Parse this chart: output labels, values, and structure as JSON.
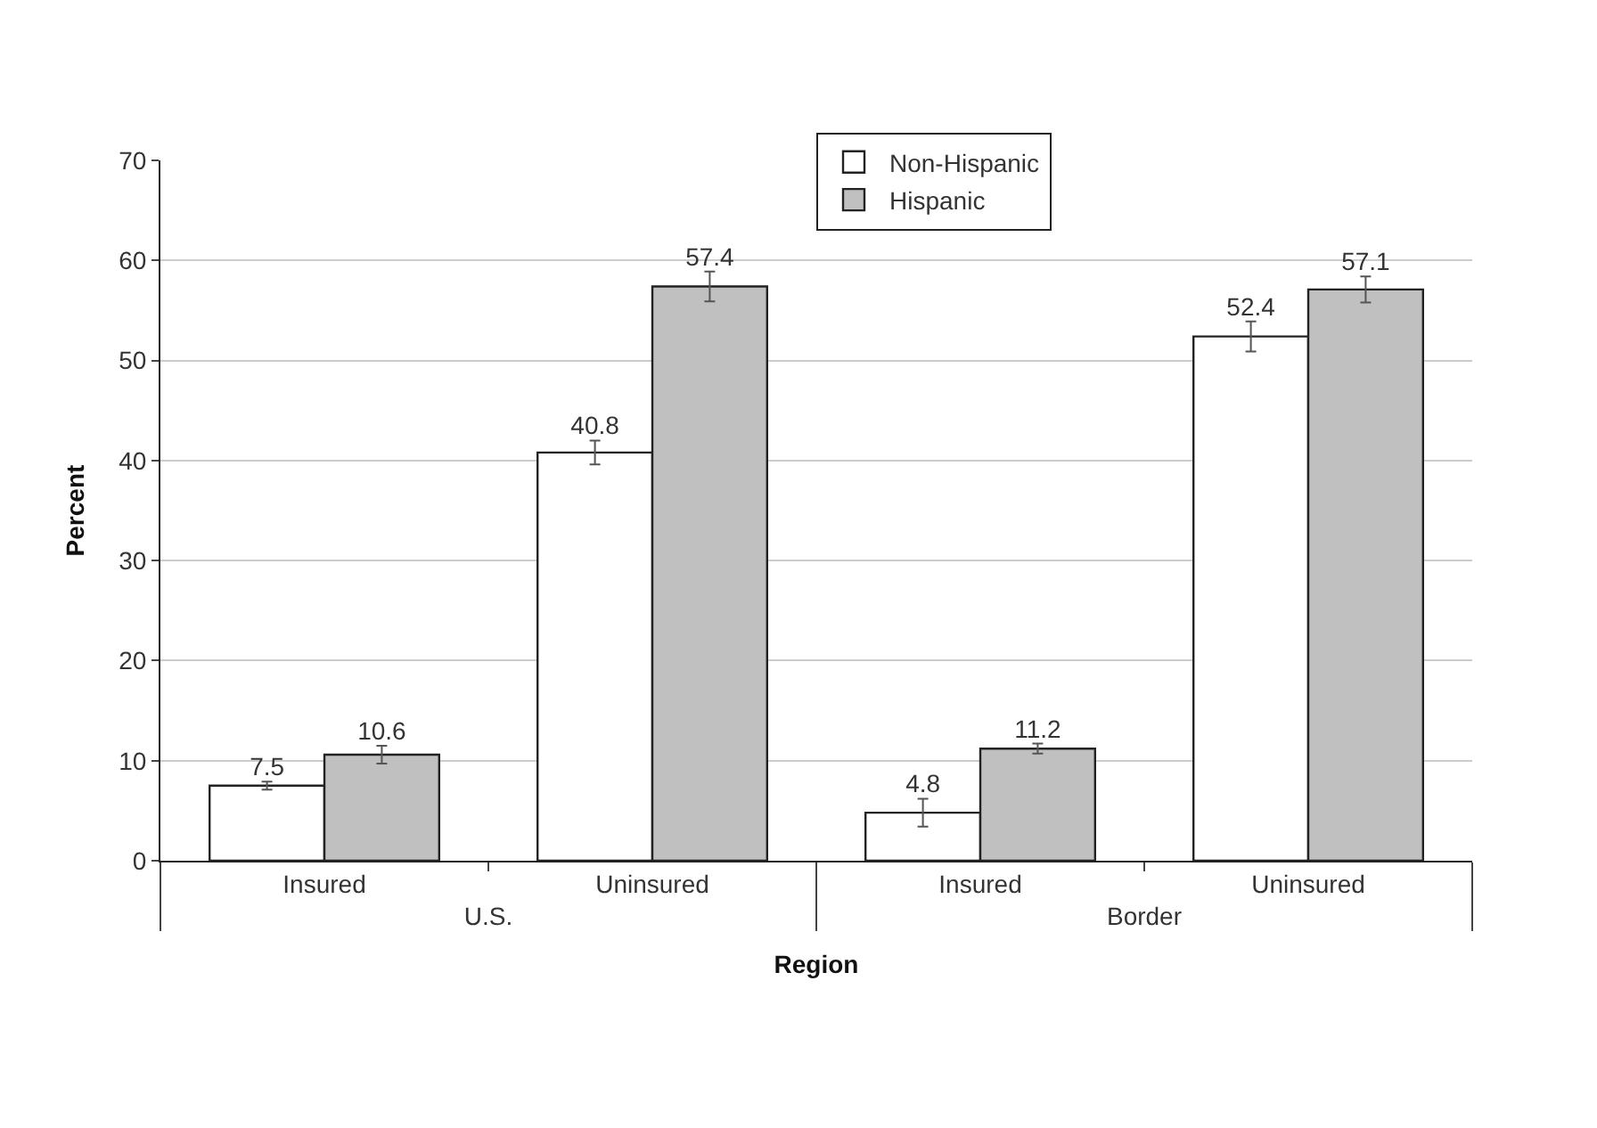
{
  "chart_data": {
    "type": "bar",
    "xlabel": "Region",
    "ylabel": "Percent",
    "categories": [
      "Insured",
      "Uninsured",
      "Insured",
      "Uninsured"
    ],
    "annotations": [
      "U.S.",
      "Border"
    ],
    "series": [
      {
        "name": "Non-Hispanic",
        "color": "#ffffff",
        "values": [
          7.5,
          40.8,
          4.8,
          52.4
        ],
        "errors": [
          0.4,
          1.2,
          1.4,
          1.5
        ]
      },
      {
        "name": "Hispanic",
        "color": "#c0c0c0",
        "values": [
          10.6,
          57.4,
          11.2,
          57.1
        ],
        "errors": [
          0.9,
          1.5,
          0.5,
          1.3
        ]
      }
    ],
    "ylim": [
      0,
      70
    ],
    "yticks": [
      0,
      10,
      20,
      30,
      40,
      50,
      60,
      70
    ],
    "grid": "y",
    "legend": "top",
    "data_labels": true
  }
}
